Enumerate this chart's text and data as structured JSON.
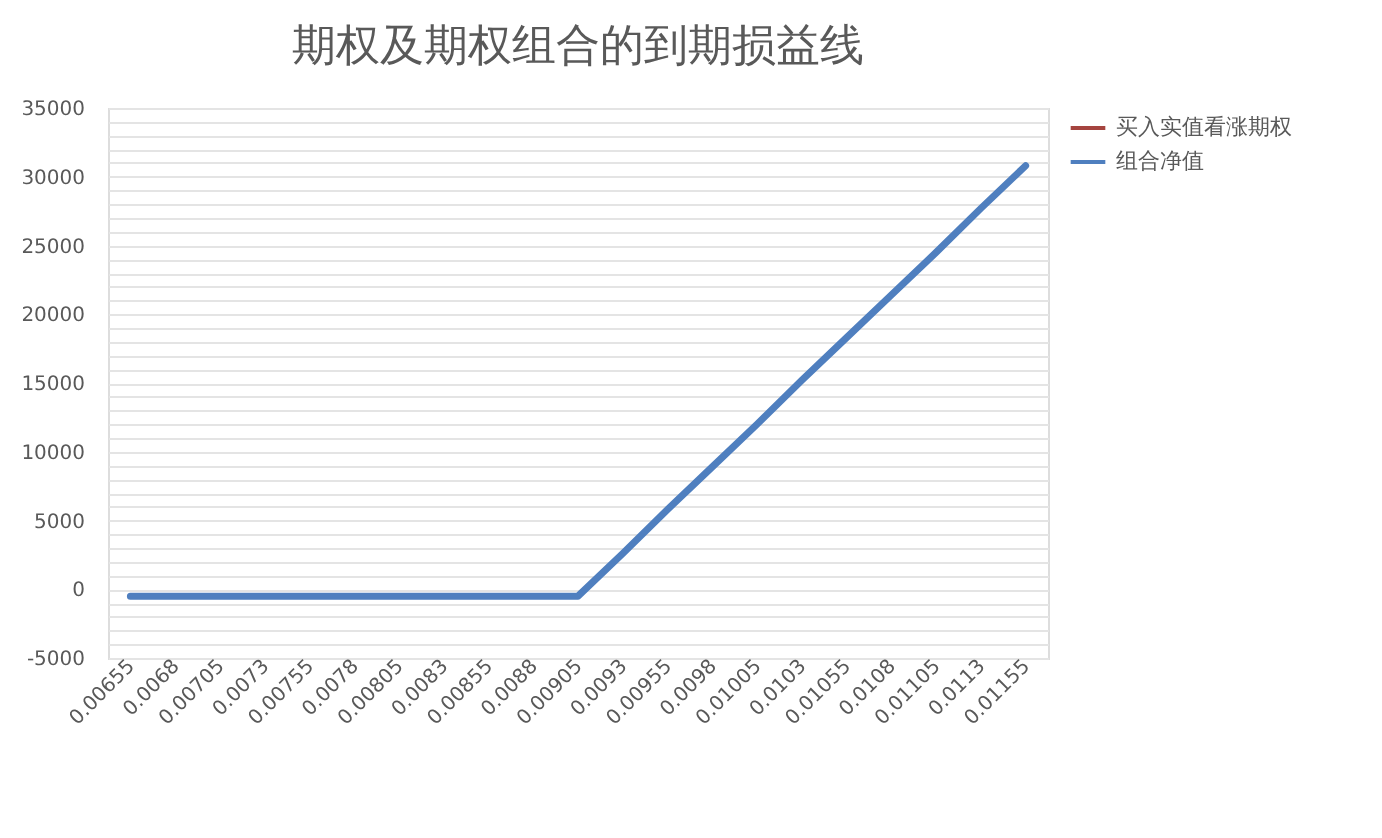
{
  "chart_data": {
    "type": "line",
    "title": "期权及期权组合的到期损益线",
    "categories": [
      "0.00655",
      "0.0068",
      "0.00705",
      "0.0073",
      "0.00755",
      "0.0078",
      "0.00805",
      "0.0083",
      "0.00855",
      "0.0088",
      "0.00905",
      "0.0093",
      "0.00955",
      "0.0098",
      "0.01005",
      "0.0103",
      "0.01055",
      "0.0108",
      "0.01105",
      "0.0113",
      "0.01155"
    ],
    "series": [
      {
        "name": "买入实值看涨期权",
        "color": "#a5443f",
        "values": [
          null,
          null,
          null,
          null,
          null,
          null,
          null,
          null,
          null,
          null,
          null,
          null,
          null,
          null,
          null,
          null,
          null,
          null,
          null,
          null,
          null
        ]
      },
      {
        "name": "组合净值",
        "color": "#4f7fbf",
        "values": [
          -500,
          -500,
          -500,
          -500,
          -500,
          -500,
          -500,
          -500,
          -500,
          -500,
          -500,
          2600,
          5800,
          8900,
          12000,
          15200,
          18300,
          21400,
          24500,
          27700,
          30800
        ]
      }
    ],
    "ylim": [
      -5000,
      35000
    ],
    "yticks": [
      -5000,
      {
        "value": -4000,
        "label": null
      },
      {
        "value": -3000,
        "label": null
      },
      {
        "value": -2000,
        "label": null
      },
      {
        "value": -1000,
        "label": null
      },
      0,
      {
        "value": 1000,
        "label": null
      },
      {
        "value": 2000,
        "label": null
      },
      {
        "value": 3000,
        "label": null
      },
      {
        "value": 4000,
        "label": null
      },
      5000,
      {
        "value": 6000,
        "label": null
      },
      {
        "value": 7000,
        "label": null
      },
      {
        "value": 8000,
        "label": null
      },
      {
        "value": 9000,
        "label": null
      },
      10000,
      {
        "value": 11000,
        "label": null
      },
      {
        "value": 12000,
        "label": null
      },
      {
        "value": 13000,
        "label": null
      },
      {
        "value": 14000,
        "label": null
      },
      15000,
      {
        "value": 16000,
        "label": null
      },
      {
        "value": 17000,
        "label": null
      },
      {
        "value": 18000,
        "label": null
      },
      {
        "value": 19000,
        "label": null
      },
      20000,
      {
        "value": 21000,
        "label": null
      },
      {
        "value": 22000,
        "label": null
      },
      {
        "value": 23000,
        "label": null
      },
      {
        "value": 24000,
        "label": null
      },
      25000,
      {
        "value": 26000,
        "label": null
      },
      {
        "value": 27000,
        "label": null
      },
      {
        "value": 28000,
        "label": null
      },
      {
        "value": 29000,
        "label": null
      },
      30000,
      {
        "value": 31000,
        "label": null
      },
      {
        "value": 32000,
        "label": null
      },
      {
        "value": 33000,
        "label": null
      },
      {
        "value": 34000,
        "label": null
      },
      35000
    ],
    "grid": "y",
    "legend": "right",
    "line_style": "solid"
  }
}
